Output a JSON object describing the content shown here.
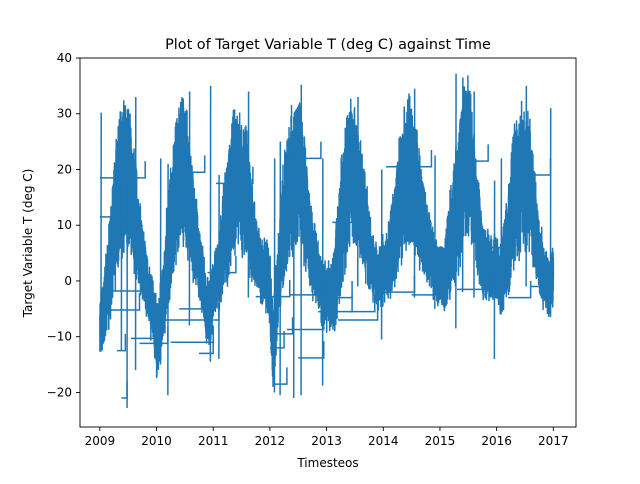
{
  "chart_data": {
    "type": "line",
    "title": "Plot of Target Variable T (deg C) against Time",
    "xlabel": "Timesteos",
    "ylabel": "Target Variable T (deg C)",
    "xlim": [
      2008.65,
      2017.4
    ],
    "ylim": [
      -26.2,
      40.0
    ],
    "x_ticks": [
      2009,
      2010,
      2011,
      2012,
      2013,
      2014,
      2015,
      2016,
      2017
    ],
    "x_tick_labels": [
      "2009",
      "2010",
      "2011",
      "2012",
      "2013",
      "2014",
      "2015",
      "2016",
      "2017"
    ],
    "y_ticks": [
      -20,
      -10,
      0,
      10,
      20,
      30,
      40
    ],
    "y_tick_labels": [
      "−20",
      "−10",
      "0",
      "10",
      "20",
      "30",
      "40"
    ],
    "grid": false,
    "legend": "none",
    "line_color": "#1f77b4",
    "series": [
      {
        "x": [
          2009.0,
          2009.06,
          2009.12,
          2009.2,
          2009.28,
          2009.36,
          2009.44,
          2009.52,
          2009.6,
          2009.68,
          2009.76,
          2009.84,
          2009.92,
          2010.0,
          2010.06,
          2010.12,
          2010.2,
          2010.28,
          2010.36,
          2010.44,
          2010.52,
          2010.6,
          2010.68,
          2010.76,
          2010.84,
          2010.92,
          2011.0,
          2011.06,
          2011.12,
          2011.2,
          2011.28,
          2011.36,
          2011.44,
          2011.52,
          2011.6,
          2011.68,
          2011.76,
          2011.84,
          2011.92,
          2012.0,
          2012.06,
          2012.12,
          2012.2,
          2012.28,
          2012.36,
          2012.44,
          2012.52,
          2012.6,
          2012.68,
          2012.76,
          2012.84,
          2012.92,
          2013.0,
          2013.06,
          2013.12,
          2013.2,
          2013.28,
          2013.36,
          2013.44,
          2013.52,
          2013.6,
          2013.68,
          2013.76,
          2013.84,
          2013.92,
          2014.0,
          2014.06,
          2014.12,
          2014.2,
          2014.28,
          2014.36,
          2014.44,
          2014.52,
          2014.6,
          2014.68,
          2014.76,
          2014.84,
          2014.92,
          2015.0,
          2015.06,
          2015.12,
          2015.2,
          2015.28,
          2015.36,
          2015.44,
          2015.52,
          2015.6,
          2015.68,
          2015.76,
          2015.84,
          2015.92,
          2016.0,
          2016.06,
          2016.12,
          2016.2,
          2016.28,
          2016.36,
          2016.44,
          2016.52,
          2016.6,
          2016.68,
          2016.76,
          2016.84,
          2016.92,
          2017.0
        ],
        "y": [
          -9.0,
          -6.5,
          -2.0,
          4.0,
          12.0,
          17.0,
          19.0,
          18.0,
          14.0,
          8.0,
          3.0,
          -1.0,
          -5.0,
          -10.0,
          -8.0,
          -3.0,
          5.0,
          11.0,
          17.0,
          21.0,
          18.0,
          13.0,
          7.0,
          3.0,
          -2.0,
          -7.0,
          -2.0,
          1.0,
          3.0,
          9.0,
          13.0,
          18.0,
          19.0,
          17.0,
          15.0,
          9.0,
          5.0,
          2.0,
          1.0,
          -1.0,
          -13.0,
          -3.0,
          7.0,
          12.0,
          17.0,
          19.0,
          20.0,
          15.0,
          9.0,
          4.0,
          1.0,
          -2.0,
          -3.0,
          -2.0,
          -2.0,
          5.0,
          12.0,
          16.0,
          21.0,
          19.0,
          14.0,
          10.0,
          5.0,
          2.0,
          0.0,
          2.0,
          3.0,
          5.0,
          9.0,
          13.0,
          17.0,
          20.0,
          18.0,
          15.0,
          11.0,
          7.0,
          5.0,
          1.0,
          1.0,
          0.0,
          3.0,
          8.0,
          12.0,
          16.0,
          21.0,
          22.0,
          15.0,
          9.0,
          4.0,
          3.0,
          2.0,
          2.0,
          0.0,
          3.0,
          7.0,
          13.0,
          17.0,
          19.0,
          18.0,
          16.0,
          10.0,
          4.0,
          1.0,
          -1.0,
          0.0
        ],
        "daily_amplitude": [
          5,
          5,
          7,
          9,
          11,
          12,
          12,
          12,
          10,
          8,
          6,
          5,
          5,
          6,
          6,
          7,
          9,
          11,
          12,
          12,
          12,
          10,
          8,
          6,
          5,
          5,
          5,
          5,
          7,
          9,
          11,
          12,
          11,
          11,
          10,
          8,
          6,
          5,
          5,
          6,
          7,
          7,
          9,
          11,
          12,
          12,
          12,
          10,
          8,
          6,
          5,
          5,
          5,
          5,
          7,
          9,
          11,
          12,
          12,
          12,
          10,
          8,
          6,
          5,
          5,
          5,
          5,
          7,
          9,
          11,
          12,
          12,
          12,
          10,
          8,
          6,
          5,
          5,
          5,
          5,
          7,
          9,
          11,
          12,
          13,
          13,
          10,
          8,
          6,
          5,
          5,
          5,
          5,
          7,
          9,
          11,
          12,
          12,
          12,
          10,
          8,
          6,
          5,
          5,
          5
        ]
      }
    ],
    "step_segments": [
      {
        "x0": 2009.02,
        "x1": 2009.7,
        "y": -5.2
      },
      {
        "x0": 2009.3,
        "x1": 2009.45,
        "y": -12.5
      },
      {
        "x0": 2009.38,
        "x1": 2009.48,
        "y": -21.0
      },
      {
        "x0": 2009.55,
        "x1": 2010.1,
        "y": -10.3
      },
      {
        "x0": 2009.7,
        "x1": 2010.2,
        "y": -11.2
      },
      {
        "x0": 2009.1,
        "x1": 2009.9,
        "y": -1.8
      },
      {
        "x0": 2010.15,
        "x1": 2010.85,
        "y": -7.0
      },
      {
        "x0": 2010.25,
        "x1": 2011.0,
        "y": -11.0
      },
      {
        "x0": 2010.4,
        "x1": 2010.8,
        "y": -5.0
      },
      {
        "x0": 2010.75,
        "x1": 2011.0,
        "y": -13.0
      },
      {
        "x0": 2011.0,
        "x1": 2011.1,
        "y": -7.0
      },
      {
        "x0": 2011.75,
        "x1": 2012.35,
        "y": -2.8
      },
      {
        "x0": 2012.0,
        "x1": 2012.25,
        "y": -12.0
      },
      {
        "x0": 2012.1,
        "x1": 2012.4,
        "y": -9.5
      },
      {
        "x0": 2012.05,
        "x1": 2012.3,
        "y": -18.5
      },
      {
        "x0": 2012.3,
        "x1": 2012.95,
        "y": -8.7
      },
      {
        "x0": 2012.35,
        "x1": 2013.0,
        "y": -2.5
      },
      {
        "x0": 2012.5,
        "x1": 2012.95,
        "y": -13.8
      },
      {
        "x0": 2012.85,
        "x1": 2013.45,
        "y": -5.5
      },
      {
        "x0": 2013.4,
        "x1": 2013.85,
        "y": -5.5
      },
      {
        "x0": 2013.2,
        "x1": 2013.9,
        "y": -7.0
      },
      {
        "x0": 2013.0,
        "x1": 2013.45,
        "y": -3.0
      },
      {
        "x0": 2013.9,
        "x1": 2014.55,
        "y": -2.0
      },
      {
        "x0": 2014.5,
        "x1": 2015.0,
        "y": -2.5
      },
      {
        "x0": 2015.3,
        "x1": 2015.9,
        "y": -1.5
      },
      {
        "x0": 2016.2,
        "x1": 2016.6,
        "y": -3.0
      },
      {
        "x0": 2016.6,
        "x1": 2017.0,
        "y": -1.0
      },
      {
        "x0": 2009.0,
        "x1": 2009.8,
        "y": 18.5
      },
      {
        "x0": 2009.0,
        "x1": 2009.55,
        "y": 11.5
      },
      {
        "x0": 2010.3,
        "x1": 2010.85,
        "y": 19.5
      },
      {
        "x0": 2011.05,
        "x1": 2011.7,
        "y": 17.5
      },
      {
        "x0": 2012.25,
        "x1": 2012.9,
        "y": 22.0
      },
      {
        "x0": 2013.1,
        "x1": 2013.55,
        "y": 10.5
      },
      {
        "x0": 2014.05,
        "x1": 2014.85,
        "y": 20.5
      },
      {
        "x0": 2015.3,
        "x1": 2015.85,
        "y": 21.5
      },
      {
        "x0": 2015.85,
        "x1": 2016.3,
        "y": 6.0
      },
      {
        "x0": 2016.4,
        "x1": 2016.95,
        "y": 19.0
      },
      {
        "x0": 2016.8,
        "x1": 2017.0,
        "y": 1.0
      },
      {
        "x0": 2010.9,
        "x1": 2011.4,
        "y": 1.5
      }
    ],
    "spikes": [
      {
        "x": 2009.02,
        "lo": -10.0,
        "hi": 30.2
      },
      {
        "x": 2009.38,
        "lo": -12.5,
        "hi": 24.0
      },
      {
        "x": 2009.48,
        "lo": -22.8,
        "hi": 27.0
      },
      {
        "x": 2009.63,
        "lo": -16.0,
        "hi": 33.0
      },
      {
        "x": 2010.07,
        "lo": -15.0,
        "hi": 22.0
      },
      {
        "x": 2010.2,
        "lo": -20.5,
        "hi": 21.0
      },
      {
        "x": 2010.58,
        "lo": -8.0,
        "hi": 34.0
      },
      {
        "x": 2010.95,
        "lo": -14.5,
        "hi": 35.0
      },
      {
        "x": 2011.1,
        "lo": -14.0,
        "hi": 19.0
      },
      {
        "x": 2011.62,
        "lo": -3.0,
        "hi": 34.0
      },
      {
        "x": 2012.08,
        "lo": -20.0,
        "hi": 22.0
      },
      {
        "x": 2012.18,
        "lo": -20.5,
        "hi": 25.0
      },
      {
        "x": 2012.42,
        "lo": -21.0,
        "hi": 24.5
      },
      {
        "x": 2012.55,
        "lo": -20.5,
        "hi": 35.2
      },
      {
        "x": 2012.93,
        "lo": -18.8,
        "hi": 22.0
      },
      {
        "x": 2013.55,
        "lo": -1.0,
        "hi": 33.0
      },
      {
        "x": 2013.97,
        "lo": -10.5,
        "hi": 20.0
      },
      {
        "x": 2014.55,
        "lo": -3.0,
        "hi": 34.5
      },
      {
        "x": 2014.91,
        "lo": -5.0,
        "hi": 22.5
      },
      {
        "x": 2015.28,
        "lo": -8.5,
        "hi": 37.2
      },
      {
        "x": 2015.4,
        "lo": -2.0,
        "hi": 36.5
      },
      {
        "x": 2015.6,
        "lo": -3.0,
        "hi": 34.0
      },
      {
        "x": 2015.96,
        "lo": -14.0,
        "hi": 18.0
      },
      {
        "x": 2016.08,
        "lo": -6.0,
        "hi": 22.0
      },
      {
        "x": 2016.52,
        "lo": -1.0,
        "hi": 35.0
      },
      {
        "x": 2016.95,
        "lo": -6.5,
        "hi": 31.0
      }
    ]
  }
}
